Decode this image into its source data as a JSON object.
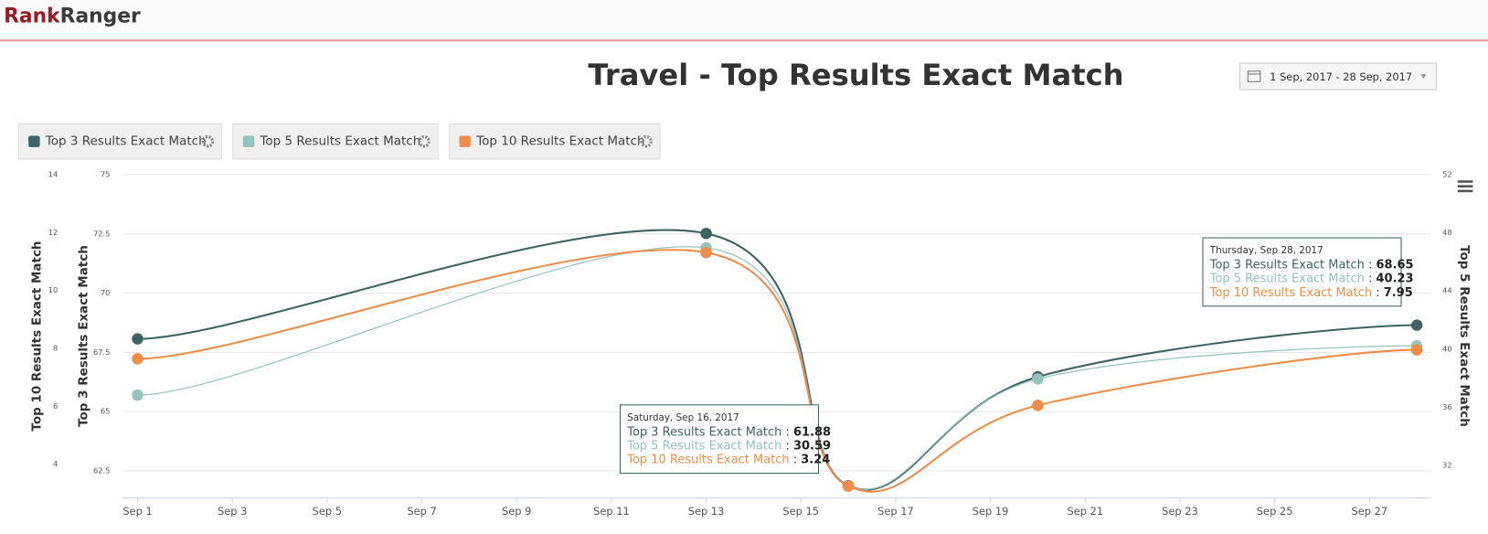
{
  "header": {
    "logo_left": "Rank",
    "logo_right": "Ranger",
    "date_range": "1 Sep, 2017 - 28 Sep, 2017"
  },
  "chart_data": {
    "type": "spline",
    "title": "Travel - Top Results Exact Match",
    "x": [
      1,
      13,
      16,
      20,
      28
    ],
    "xlim": [
      0.7,
      28.3
    ],
    "xticks": [
      {
        "value": 1,
        "label": "Sep 1"
      },
      {
        "value": 3,
        "label": "Sep 3"
      },
      {
        "value": 5,
        "label": "Sep 5"
      },
      {
        "value": 7,
        "label": "Sep 7"
      },
      {
        "value": 9,
        "label": "Sep 9"
      },
      {
        "value": 11,
        "label": "Sep 11"
      },
      {
        "value": 13,
        "label": "Sep 13"
      },
      {
        "value": 15,
        "label": "Sep 15"
      },
      {
        "value": 17,
        "label": "Sep 17"
      },
      {
        "value": 19,
        "label": "Sep 19"
      },
      {
        "value": 21,
        "label": "Sep 21"
      },
      {
        "value": 23,
        "label": "Sep 23"
      },
      {
        "value": 25,
        "label": "Sep 25"
      },
      {
        "value": 27,
        "label": "Sep 27"
      }
    ],
    "ylabel": "Top 3 Results Exact Match",
    "ylim": [
      61.38,
      75
    ],
    "yticks": [
      62.5,
      65,
      67.5,
      70,
      72.5,
      75
    ],
    "y2label": "Top 5 Results Exact Match",
    "y2lim": [
      29.8,
      52
    ],
    "y2ticks": [
      32,
      36,
      40,
      44,
      48,
      52
    ],
    "y3label": "Top 10 Results Exact Match",
    "y3lim": [
      2.85,
      14
    ],
    "y3ticks": [
      4,
      6,
      8,
      10,
      12,
      14
    ],
    "grid": true,
    "series": [
      {
        "name": "Top 3 Results Exact Match",
        "color": "#3d6462",
        "axis": "y",
        "values": [
          68.07,
          72.52,
          61.88,
          66.47,
          68.65
        ]
      },
      {
        "name": "Top 5 Results Exact Match",
        "color": "#93c3bd",
        "axis": "y2",
        "values": [
          36.84,
          46.97,
          30.59,
          37.95,
          40.23
        ]
      },
      {
        "name": "Top 10 Results Exact Match",
        "color": "#ef8c47",
        "axis": "y3",
        "values": [
          7.64,
          11.31,
          3.24,
          6.03,
          7.95
        ]
      }
    ],
    "separator": ":",
    "tooltips": [
      {
        "x": 16,
        "title": "Saturday, Sep 16, 2017"
      },
      {
        "x": 28,
        "title": "Thursday, Sep 28, 2017"
      }
    ]
  }
}
